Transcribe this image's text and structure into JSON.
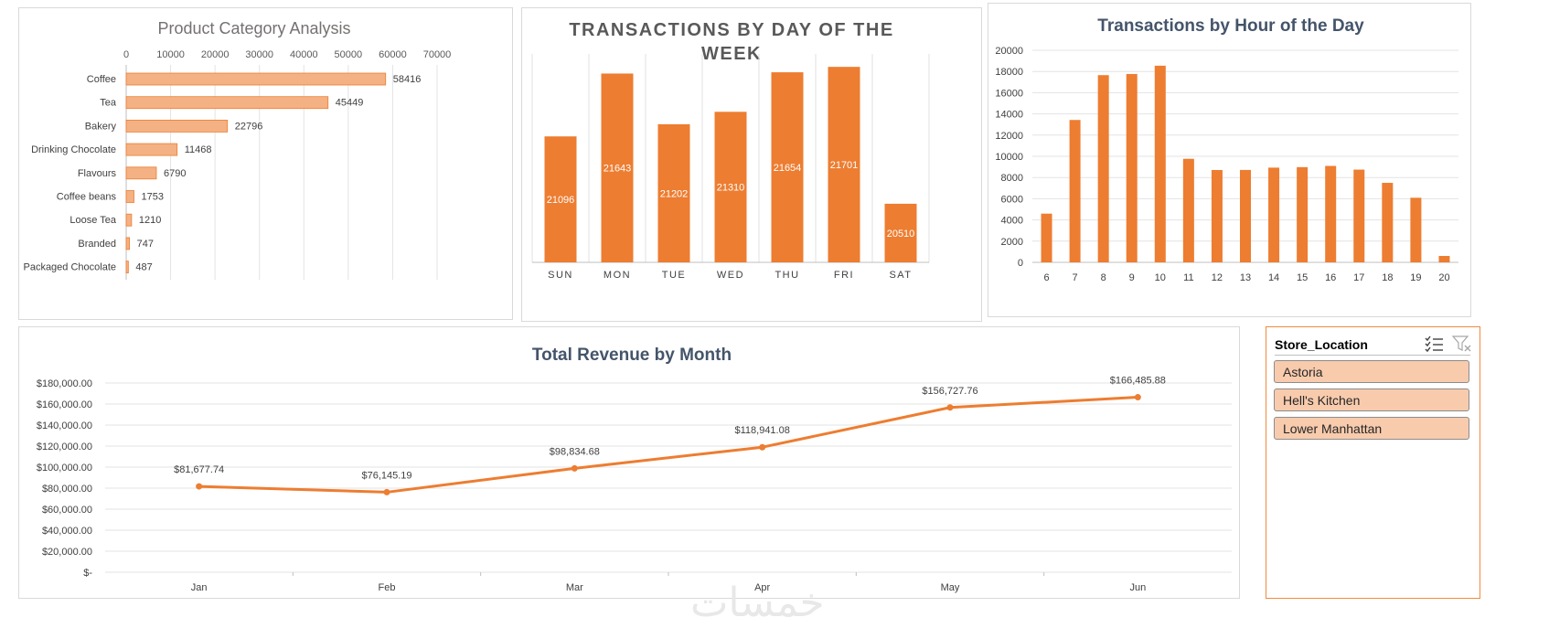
{
  "chart_data": [
    {
      "id": "product-category",
      "type": "bar",
      "orientation": "horizontal",
      "title": "Product Category Analysis",
      "categories": [
        "Coffee",
        "Tea",
        "Bakery",
        "Drinking Chocolate",
        "Flavours",
        "Coffee beans",
        "Loose Tea",
        "Branded",
        "Packaged Chocolate"
      ],
      "values": [
        58416,
        45449,
        22796,
        11468,
        6790,
        1753,
        1210,
        747,
        487
      ],
      "xlim": [
        0,
        70000
      ],
      "ticks": [
        "0",
        "10000",
        "20000",
        "30000",
        "40000",
        "50000",
        "60000",
        "70000"
      ],
      "grid": true,
      "xlabel": "",
      "ylabel": ""
    },
    {
      "id": "day-of-week",
      "type": "bar",
      "title": "TRANSACTIONS BY DAY OF THE WEEK",
      "categories": [
        "SUN",
        "MON",
        "TUE",
        "WED",
        "THU",
        "FRI",
        "SAT"
      ],
      "values": [
        21096,
        21643,
        21202,
        21310,
        21654,
        21701,
        20510
      ],
      "ylim": [
        20000,
        21750
      ],
      "grid": true
    },
    {
      "id": "hour-of-day",
      "type": "bar",
      "title": "Transactions by Hour of the Day",
      "categories": [
        "6",
        "7",
        "8",
        "9",
        "10",
        "11",
        "12",
        "13",
        "14",
        "15",
        "16",
        "17",
        "18",
        "19",
        "20"
      ],
      "values": [
        4594,
        13428,
        17654,
        17764,
        18545,
        9766,
        8708,
        8714,
        8933,
        8979,
        9093,
        8745,
        7498,
        6092,
        603
      ],
      "ylim": [
        0,
        20000
      ],
      "ticks": [
        "0",
        "2000",
        "4000",
        "6000",
        "8000",
        "10000",
        "12000",
        "14000",
        "16000",
        "18000",
        "20000"
      ],
      "grid": true
    },
    {
      "id": "revenue-month",
      "type": "line",
      "title": "Total Revenue by Month",
      "categories": [
        "Jan",
        "Feb",
        "Mar",
        "Apr",
        "May",
        "Jun"
      ],
      "values": [
        81677.74,
        76145.19,
        98834.68,
        118941.08,
        156727.76,
        166485.88
      ],
      "labels": [
        "$81,677.74",
        "$76,145.19",
        "$98,834.68",
        "$118,941.08",
        "$156,727.76",
        "$166,485.88"
      ],
      "ylim": [
        0,
        180000
      ],
      "ticks": [
        "$-",
        "$20,000.00",
        "$40,000.00",
        "$60,000.00",
        "$80,000.00",
        "$100,000.00",
        "$120,000.00",
        "$140,000.00",
        "$160,000.00",
        "$180,000.00"
      ],
      "grid": true
    }
  ],
  "slicer": {
    "title": "Store_Location",
    "icons": [
      "multi-select-icon",
      "clear-filter-icon"
    ],
    "items": [
      "Astoria",
      "Hell's Kitchen",
      "Lower Manhattan"
    ]
  },
  "watermark": "خمسات",
  "colors": {
    "accent": "#ed7d31",
    "bar_light": "#f4b183",
    "line_title": "#44546a",
    "slicer_item": "#f8cbad",
    "slicer_border": "#f28a3c"
  }
}
